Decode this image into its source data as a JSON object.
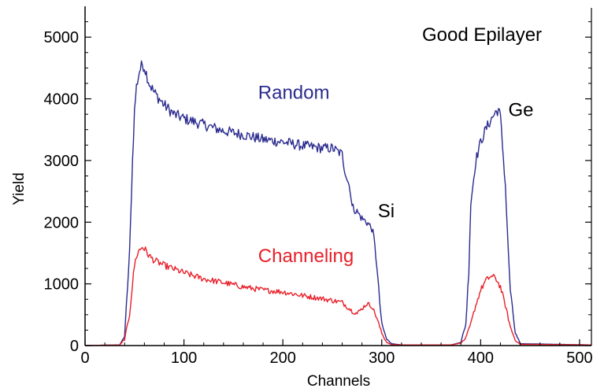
{
  "chart_data": {
    "type": "line",
    "title": "Good Epilayer",
    "xlabel": "Channels",
    "ylabel": "Yield",
    "xlim": [
      0,
      512
    ],
    "ylim": [
      0,
      5500
    ],
    "xticks": [
      0,
      100,
      200,
      300,
      400,
      500
    ],
    "yticks": [
      0,
      1000,
      2000,
      3000,
      4000,
      5000
    ],
    "xtick_labels": [
      "0",
      "100",
      "200",
      "300",
      "400",
      "500"
    ],
    "ytick_labels": [
      "0",
      "1000",
      "2000",
      "3000",
      "4000",
      "5000"
    ],
    "grid": false,
    "colors": {
      "random": "#2b2b8f",
      "channeling": "#e8202a",
      "axis": "#000000"
    },
    "annotations": [
      {
        "text": "Random",
        "color": "#2b2b8f",
        "x": 175,
        "y": 4000
      },
      {
        "text": "Channeling",
        "color": "#e8202a",
        "x": 175,
        "y": 1350
      },
      {
        "text": "Si",
        "x": 296,
        "y": 2080
      },
      {
        "text": "Ge",
        "x": 428,
        "y": 3720
      }
    ],
    "series": [
      {
        "key": "random",
        "color": "#2b2b8f",
        "x": [
          0,
          35,
          40,
          45,
          48,
          50,
          52,
          55,
          58,
          60,
          65,
          70,
          80,
          90,
          100,
          120,
          140,
          160,
          180,
          200,
          220,
          240,
          250,
          255,
          260,
          262,
          265,
          268,
          270,
          275,
          280,
          285,
          290,
          292,
          295,
          298,
          300,
          305,
          310,
          320,
          370,
          380,
          385,
          388,
          390,
          395,
          400,
          405,
          410,
          415,
          418,
          420,
          425,
          428,
          430,
          435,
          440,
          512
        ],
        "y": [
          0,
          10,
          150,
          1500,
          3000,
          3800,
          4200,
          4450,
          4560,
          4520,
          4250,
          4100,
          3900,
          3750,
          3680,
          3580,
          3480,
          3420,
          3340,
          3300,
          3240,
          3200,
          3200,
          3150,
          3100,
          2900,
          2700,
          2550,
          2250,
          2170,
          2060,
          2000,
          1900,
          1750,
          1300,
          700,
          350,
          100,
          30,
          10,
          10,
          50,
          350,
          1200,
          2300,
          3000,
          3300,
          3500,
          3650,
          3780,
          3830,
          3700,
          2600,
          1500,
          900,
          200,
          30,
          10
        ]
      },
      {
        "key": "channeling",
        "color": "#e8202a",
        "x": [
          0,
          35,
          40,
          45,
          48,
          50,
          52,
          55,
          58,
          60,
          65,
          70,
          80,
          100,
          120,
          140,
          160,
          180,
          200,
          220,
          240,
          260,
          265,
          270,
          275,
          280,
          285,
          290,
          295,
          300,
          305,
          310,
          320,
          370,
          380,
          385,
          390,
          395,
          400,
          405,
          410,
          415,
          420,
          425,
          430,
          435,
          440,
          512
        ],
        "y": [
          0,
          10,
          100,
          500,
          1000,
          1300,
          1450,
          1550,
          1600,
          1570,
          1450,
          1380,
          1300,
          1180,
          1080,
          1020,
          950,
          900,
          870,
          810,
          760,
          700,
          630,
          560,
          520,
          600,
          680,
          640,
          450,
          200,
          50,
          15,
          10,
          10,
          40,
          120,
          350,
          650,
          900,
          1050,
          1120,
          1100,
          950,
          650,
          300,
          90,
          20,
          10
        ]
      }
    ]
  }
}
